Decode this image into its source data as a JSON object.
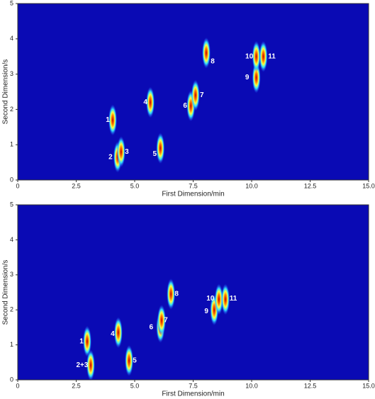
{
  "chart_data": [
    {
      "type": "contour",
      "x_label": "First Dimension/min",
      "y_label": "Second Dimension/s",
      "xlim": [
        0,
        15
      ],
      "ylim": [
        0,
        5
      ],
      "xticks": [
        0,
        2.5,
        {
          "value": 5,
          "label": "5.0"
        },
        7.5,
        {
          "value": 10,
          "label": "10.0"
        },
        12.5,
        {
          "value": 15,
          "label": "15.0"
        }
      ],
      "yticks": [
        0,
        1,
        2,
        3,
        4,
        5
      ],
      "peaks": [
        {
          "label": "1",
          "x": 4.06,
          "y": 1.7
        },
        {
          "label": "2",
          "x": 4.27,
          "y": 0.65
        },
        {
          "label": "3",
          "x": 4.42,
          "y": 0.8
        },
        {
          "label": "4",
          "x": 5.67,
          "y": 2.2
        },
        {
          "label": "5",
          "x": 6.1,
          "y": 0.9
        },
        {
          "label": "6",
          "x": 7.4,
          "y": 2.1
        },
        {
          "label": "7",
          "x": 7.6,
          "y": 2.4
        },
        {
          "label": "8",
          "x": 8.06,
          "y": 3.6
        },
        {
          "label": "9",
          "x": 10.2,
          "y": 2.9
        },
        {
          "label": "10",
          "x": 10.2,
          "y": 3.5
        },
        {
          "label": "11",
          "x": 10.5,
          "y": 3.5
        }
      ]
    },
    {
      "type": "contour",
      "x_label": "First Dimension/min",
      "y_label": "Second Dimension/s",
      "xlim": [
        0,
        15
      ],
      "ylim": [
        0,
        5
      ],
      "xticks": [
        0,
        2.5,
        {
          "value": 5,
          "label": "5.0"
        },
        7.5,
        {
          "value": 10,
          "label": "10.0"
        },
        12.5,
        {
          "value": 15,
          "label": "15.0"
        }
      ],
      "yticks": [
        0,
        1,
        2,
        3,
        4,
        5
      ],
      "peaks": [
        {
          "label": "1",
          "x": 2.97,
          "y": 1.1
        },
        {
          "label": "2+3",
          "x": 3.12,
          "y": 0.42
        },
        {
          "label": "4",
          "x": 4.3,
          "y": 1.35
        },
        {
          "label": "5",
          "x": 4.76,
          "y": 0.55
        },
        {
          "label": "6",
          "x": 6.1,
          "y": 1.5
        },
        {
          "label": "7",
          "x": 6.15,
          "y": 1.7
        },
        {
          "label": "8",
          "x": 6.55,
          "y": 2.45
        },
        {
          "label": "9",
          "x": 8.4,
          "y": 2.0
        },
        {
          "label": "10",
          "x": 8.6,
          "y": 2.3
        },
        {
          "label": "11",
          "x": 8.88,
          "y": 2.3
        }
      ]
    }
  ]
}
